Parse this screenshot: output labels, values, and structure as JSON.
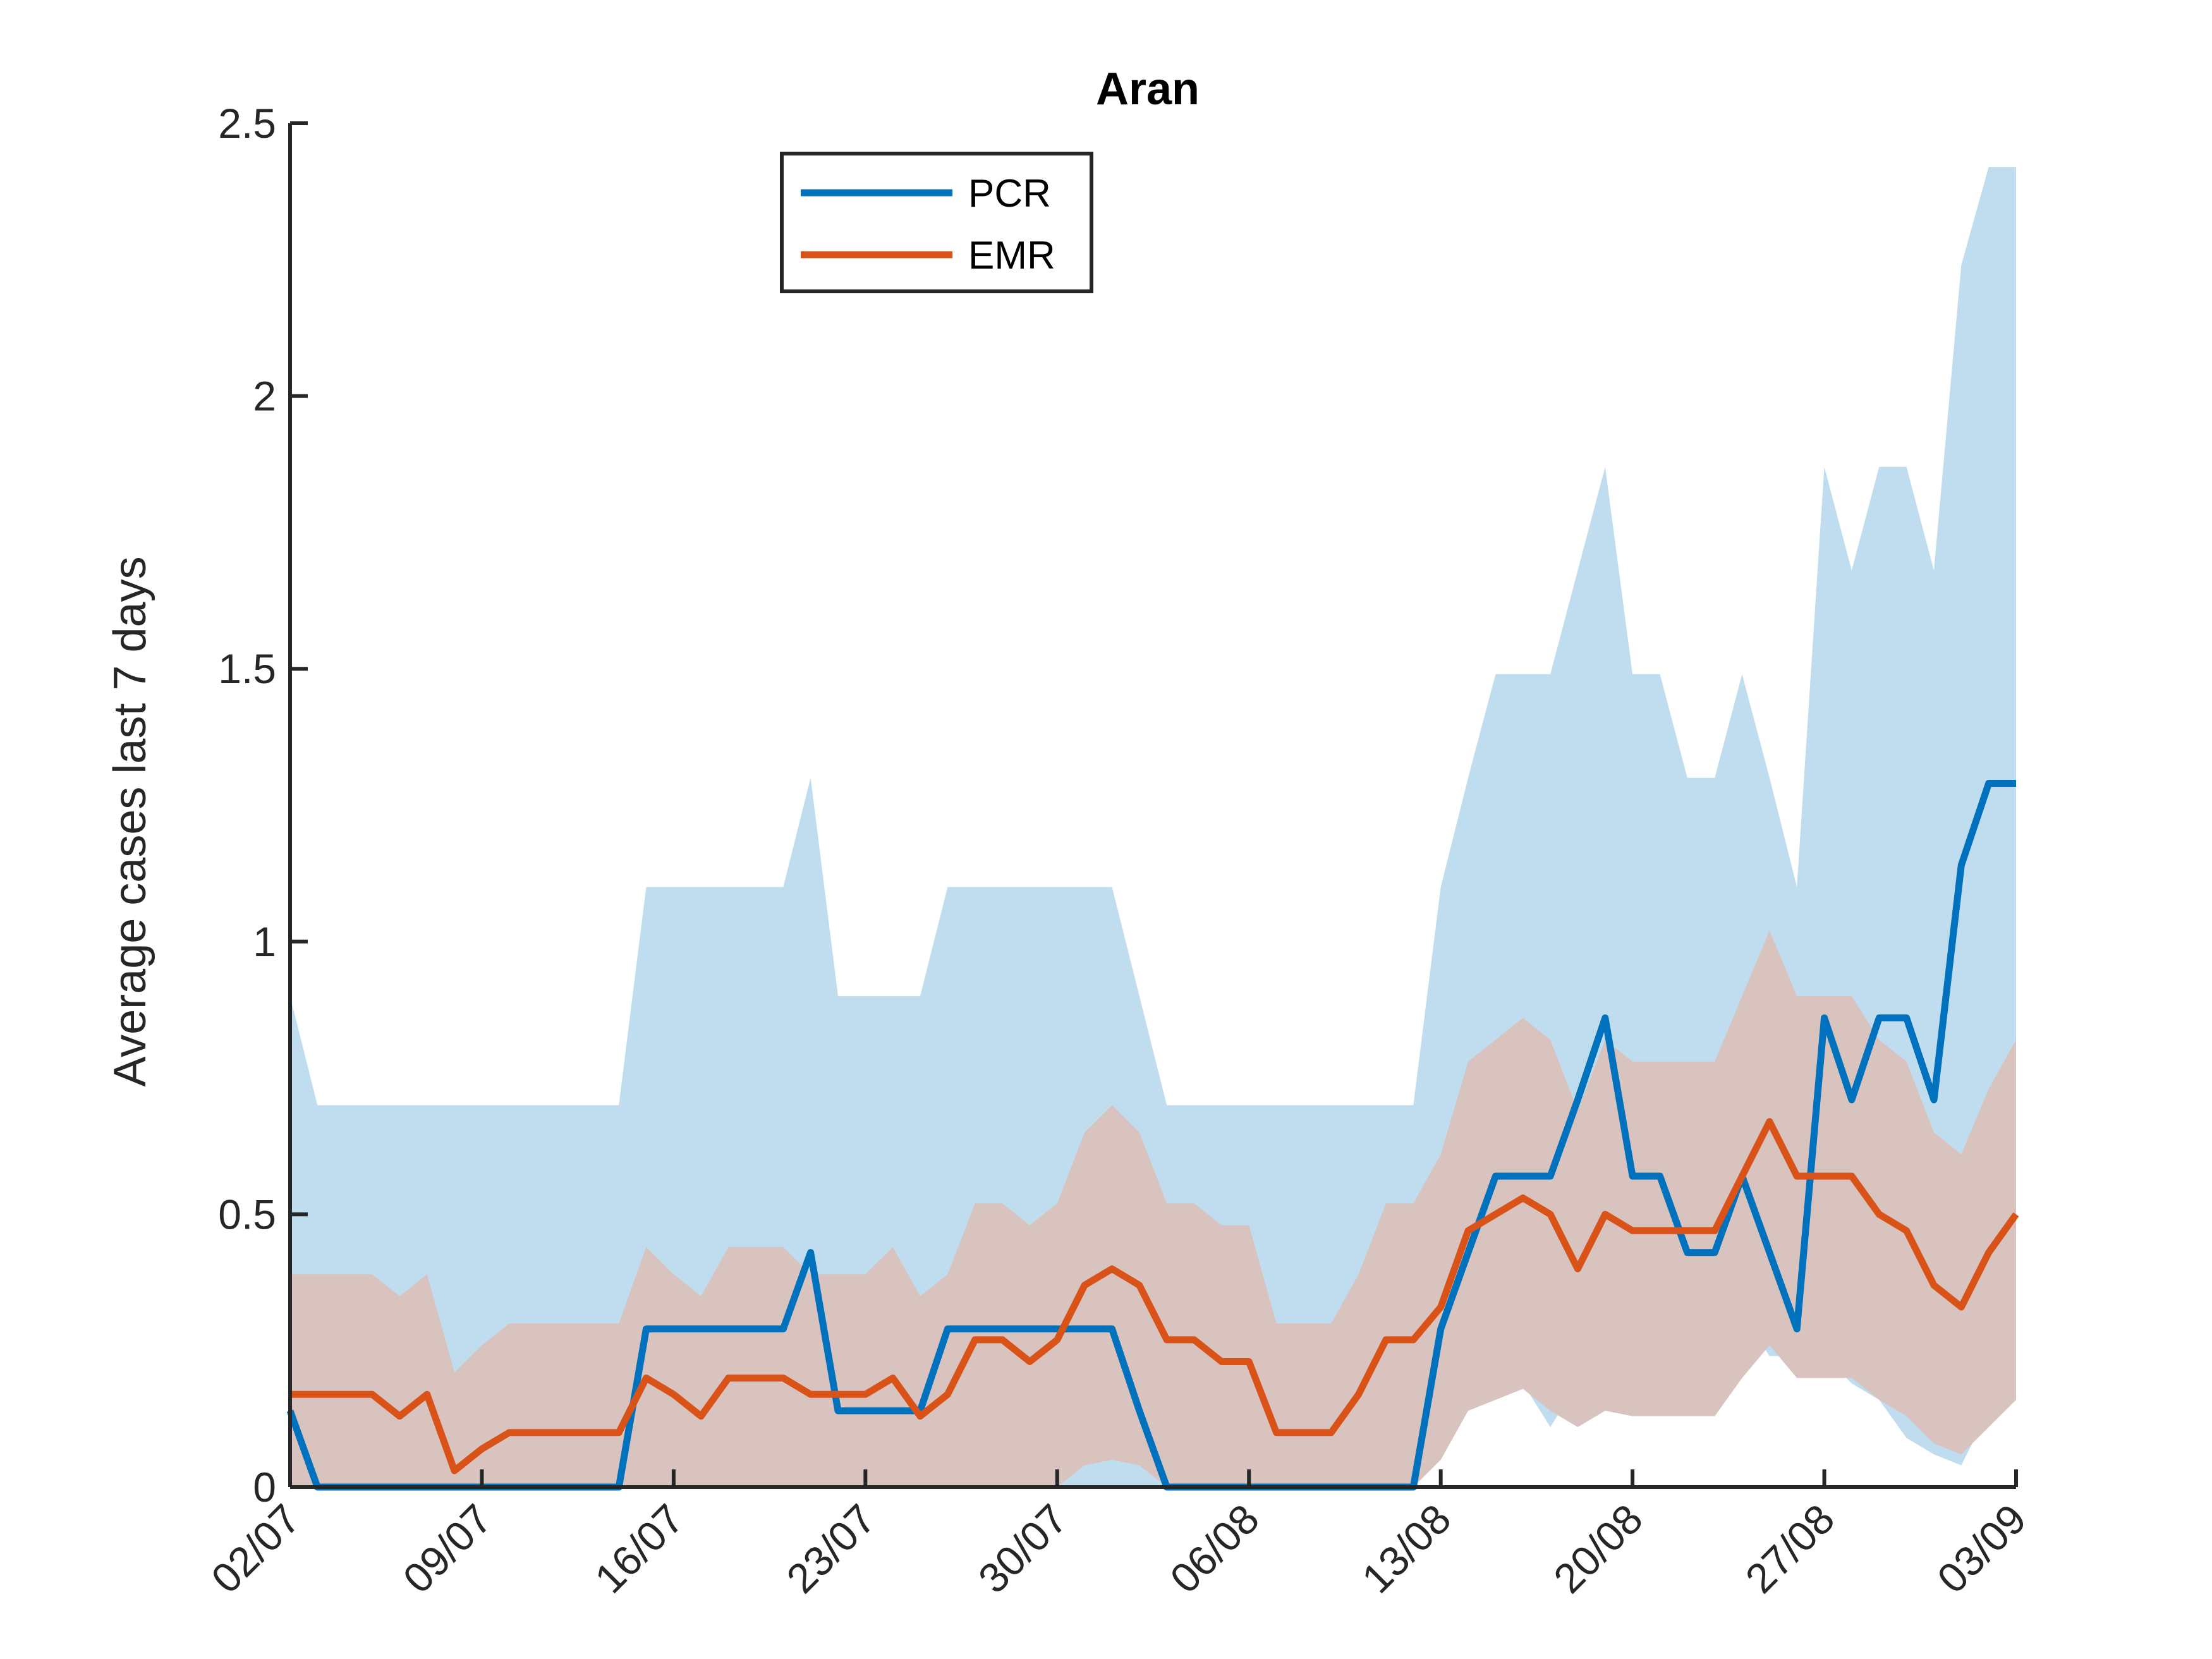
{
  "chart_data": {
    "type": "line",
    "title": "Aran",
    "xlabel": "",
    "ylabel": "Average cases last 7 days",
    "ylim": [
      0,
      2.5
    ],
    "yticks": [
      "0",
      "0.5",
      "1",
      "1.5",
      "2",
      "2.5"
    ],
    "xtick_labels": [
      "02/07",
      "09/07",
      "16/07",
      "23/07",
      "30/07",
      "06/08",
      "13/08",
      "20/08",
      "27/08",
      "03/09"
    ],
    "grid": false,
    "legend_position": "top-center",
    "x": [
      "02/07",
      "03/07",
      "04/07",
      "05/07",
      "06/07",
      "07/07",
      "08/07",
      "09/07",
      "10/07",
      "11/07",
      "12/07",
      "13/07",
      "14/07",
      "15/07",
      "16/07",
      "17/07",
      "18/07",
      "19/07",
      "20/07",
      "21/07",
      "22/07",
      "23/07",
      "24/07",
      "25/07",
      "26/07",
      "27/07",
      "28/07",
      "29/07",
      "30/07",
      "31/07",
      "01/08",
      "02/08",
      "03/08",
      "04/08",
      "05/08",
      "06/08",
      "07/08",
      "08/08",
      "09/08",
      "10/08",
      "11/08",
      "12/08",
      "13/08",
      "14/08",
      "15/08",
      "16/08",
      "17/08",
      "18/08",
      "19/08",
      "20/08",
      "21/08",
      "22/08",
      "23/08",
      "24/08",
      "25/08",
      "26/08",
      "27/08",
      "28/08",
      "29/08",
      "30/08",
      "31/08",
      "01/09",
      "02/09",
      "03/09"
    ],
    "series": [
      {
        "name": "PCR",
        "color": "#0072BD",
        "band_color": "#BFDDEE",
        "values": [
          0.14,
          0,
          0,
          0,
          0,
          0,
          0,
          0,
          0,
          0,
          0,
          0,
          0,
          0.29,
          0.29,
          0.29,
          0.29,
          0.29,
          0.29,
          0.43,
          0.14,
          0.14,
          0.14,
          0.14,
          0.29,
          0.29,
          0.29,
          0.29,
          0.29,
          0.29,
          0.29,
          0.14,
          0,
          0,
          0,
          0,
          0,
          0,
          0,
          0,
          0,
          0,
          0.29,
          0.43,
          0.57,
          0.57,
          0.57,
          0.71,
          0.86,
          0.57,
          0.57,
          0.43,
          0.43,
          0.57,
          0.43,
          0.29,
          0.86,
          0.71,
          0.86,
          0.86,
          0.71,
          1.14,
          1.29,
          1.29
        ],
        "lower": [
          0,
          0,
          0,
          0,
          0,
          0,
          0,
          0,
          0,
          0,
          0,
          0,
          0,
          0,
          0,
          0,
          0,
          0,
          0,
          0,
          0,
          0,
          0,
          0,
          0,
          0.01,
          0.01,
          0,
          0,
          0,
          0,
          0,
          0,
          0,
          0,
          0,
          0,
          0,
          0,
          0,
          0,
          0,
          0.16,
          0.19,
          0.21,
          0.19,
          0.11,
          0.19,
          0.16,
          0.16,
          0.16,
          0.16,
          0.24,
          0.32,
          0.24,
          0.24,
          0.24,
          0.19,
          0.16,
          0.09,
          0.06,
          0.04,
          0.14,
          0.16
        ],
        "upper": [
          0.9,
          0.7,
          0.7,
          0.7,
          0.7,
          0.7,
          0.7,
          0.7,
          0.7,
          0.7,
          0.7,
          0.7,
          0.7,
          1.1,
          1.1,
          1.1,
          1.1,
          1.1,
          1.1,
          1.3,
          0.9,
          0.9,
          0.9,
          0.9,
          1.1,
          1.1,
          1.1,
          1.1,
          1.1,
          1.1,
          1.1,
          0.9,
          0.7,
          0.7,
          0.7,
          0.7,
          0.7,
          0.7,
          0.7,
          0.7,
          0.7,
          0.7,
          1.1,
          1.3,
          1.49,
          1.49,
          1.49,
          1.68,
          1.87,
          1.49,
          1.49,
          1.3,
          1.3,
          1.49,
          1.3,
          1.1,
          1.87,
          1.68,
          1.87,
          1.87,
          1.68,
          2.24,
          2.42,
          2.42
        ]
      },
      {
        "name": "EMR",
        "color": "#D95319",
        "band_color": "#D8C3BE",
        "values": [
          0.17,
          0.17,
          0.17,
          0.17,
          0.13,
          0.17,
          0.03,
          0.07,
          0.1,
          0.1,
          0.1,
          0.1,
          0.1,
          0.2,
          0.17,
          0.13,
          0.2,
          0.2,
          0.2,
          0.17,
          0.17,
          0.17,
          0.2,
          0.13,
          0.17,
          0.27,
          0.27,
          0.23,
          0.27,
          0.37,
          0.4,
          0.37,
          0.27,
          0.27,
          0.23,
          0.23,
          0.1,
          0.1,
          0.1,
          0.17,
          0.27,
          0.27,
          0.33,
          0.47,
          0.5,
          0.53,
          0.5,
          0.4,
          0.5,
          0.47,
          0.47,
          0.47,
          0.47,
          0.57,
          0.67,
          0.57,
          0.57,
          0.57,
          0.5,
          0.47,
          0.37,
          0.33,
          0.43,
          0.5
        ],
        "lower": [
          0,
          0,
          0,
          0,
          0,
          0,
          0,
          0,
          0,
          0,
          0,
          0,
          0,
          0,
          0,
          0,
          0,
          0,
          0,
          0,
          0,
          0,
          0,
          0,
          0,
          0,
          0,
          0,
          0,
          0.04,
          0.05,
          0.04,
          0,
          0,
          0,
          0,
          0,
          0,
          0,
          0,
          0,
          0,
          0.05,
          0.14,
          0.16,
          0.18,
          0.14,
          0.11,
          0.14,
          0.13,
          0.13,
          0.13,
          0.13,
          0.2,
          0.26,
          0.2,
          0.2,
          0.2,
          0.16,
          0.13,
          0.08,
          0.06,
          0.11,
          0.16
        ],
        "upper": [
          0.39,
          0.39,
          0.39,
          0.39,
          0.35,
          0.39,
          0.21,
          0.26,
          0.3,
          0.3,
          0.3,
          0.3,
          0.3,
          0.44,
          0.39,
          0.35,
          0.44,
          0.44,
          0.44,
          0.39,
          0.39,
          0.39,
          0.44,
          0.35,
          0.39,
          0.52,
          0.52,
          0.48,
          0.52,
          0.65,
          0.7,
          0.65,
          0.52,
          0.52,
          0.48,
          0.48,
          0.3,
          0.3,
          0.3,
          0.39,
          0.52,
          0.52,
          0.61,
          0.78,
          0.82,
          0.86,
          0.82,
          0.69,
          0.82,
          0.78,
          0.78,
          0.78,
          0.78,
          0.9,
          1.02,
          0.9,
          0.9,
          0.9,
          0.82,
          0.78,
          0.65,
          0.61,
          0.73,
          0.82
        ]
      }
    ]
  }
}
